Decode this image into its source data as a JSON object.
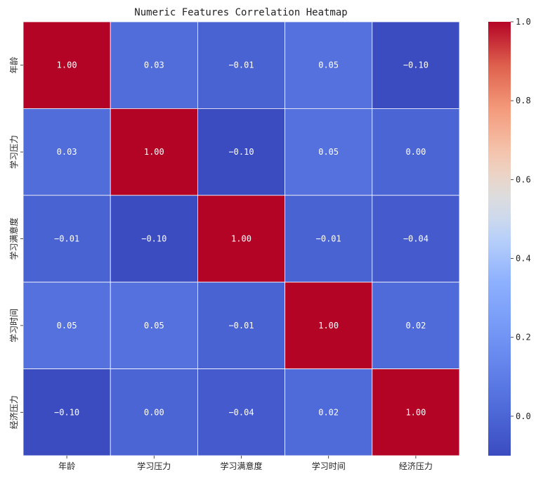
{
  "chart_data": {
    "type": "heatmap",
    "title": "Numeric Features Correlation Heatmap",
    "xlabel": "",
    "ylabel": "",
    "x_categories": [
      "年龄",
      "学习压力",
      "学习满意度",
      "学习时间",
      "经济压力"
    ],
    "y_categories": [
      "年龄",
      "学习压力",
      "学习满意度",
      "学习时间",
      "经济压力"
    ],
    "values": [
      [
        1.0,
        0.03,
        -0.01,
        0.05,
        -0.1
      ],
      [
        0.03,
        1.0,
        -0.1,
        0.05,
        0.0
      ],
      [
        -0.01,
        -0.1,
        1.0,
        -0.01,
        -0.04
      ],
      [
        0.05,
        0.05,
        -0.01,
        1.0,
        0.02
      ],
      [
        -0.1,
        0.0,
        -0.04,
        0.02,
        1.0
      ]
    ],
    "value_labels": [
      [
        "1.00",
        "0.03",
        "−0.01",
        "0.05",
        "−0.10"
      ],
      [
        "0.03",
        "1.00",
        "−0.10",
        "0.05",
        "0.00"
      ],
      [
        "−0.01",
        "−0.10",
        "1.00",
        "−0.01",
        "−0.04"
      ],
      [
        "0.05",
        "0.05",
        "−0.01",
        "1.00",
        "0.02"
      ],
      [
        "−0.10",
        "0.00",
        "−0.04",
        "0.02",
        "1.00"
      ]
    ],
    "colormap": "coolwarm",
    "vmin": -0.1,
    "vmax": 1.0,
    "colorbar_ticks": [
      0.0,
      0.2,
      0.4,
      0.6,
      0.8,
      1.0
    ],
    "colorbar_tick_labels": [
      "0.0",
      "0.2",
      "0.4",
      "0.6",
      "0.8",
      "1.0"
    ],
    "grid": true,
    "grid_color": "#ffffff"
  }
}
